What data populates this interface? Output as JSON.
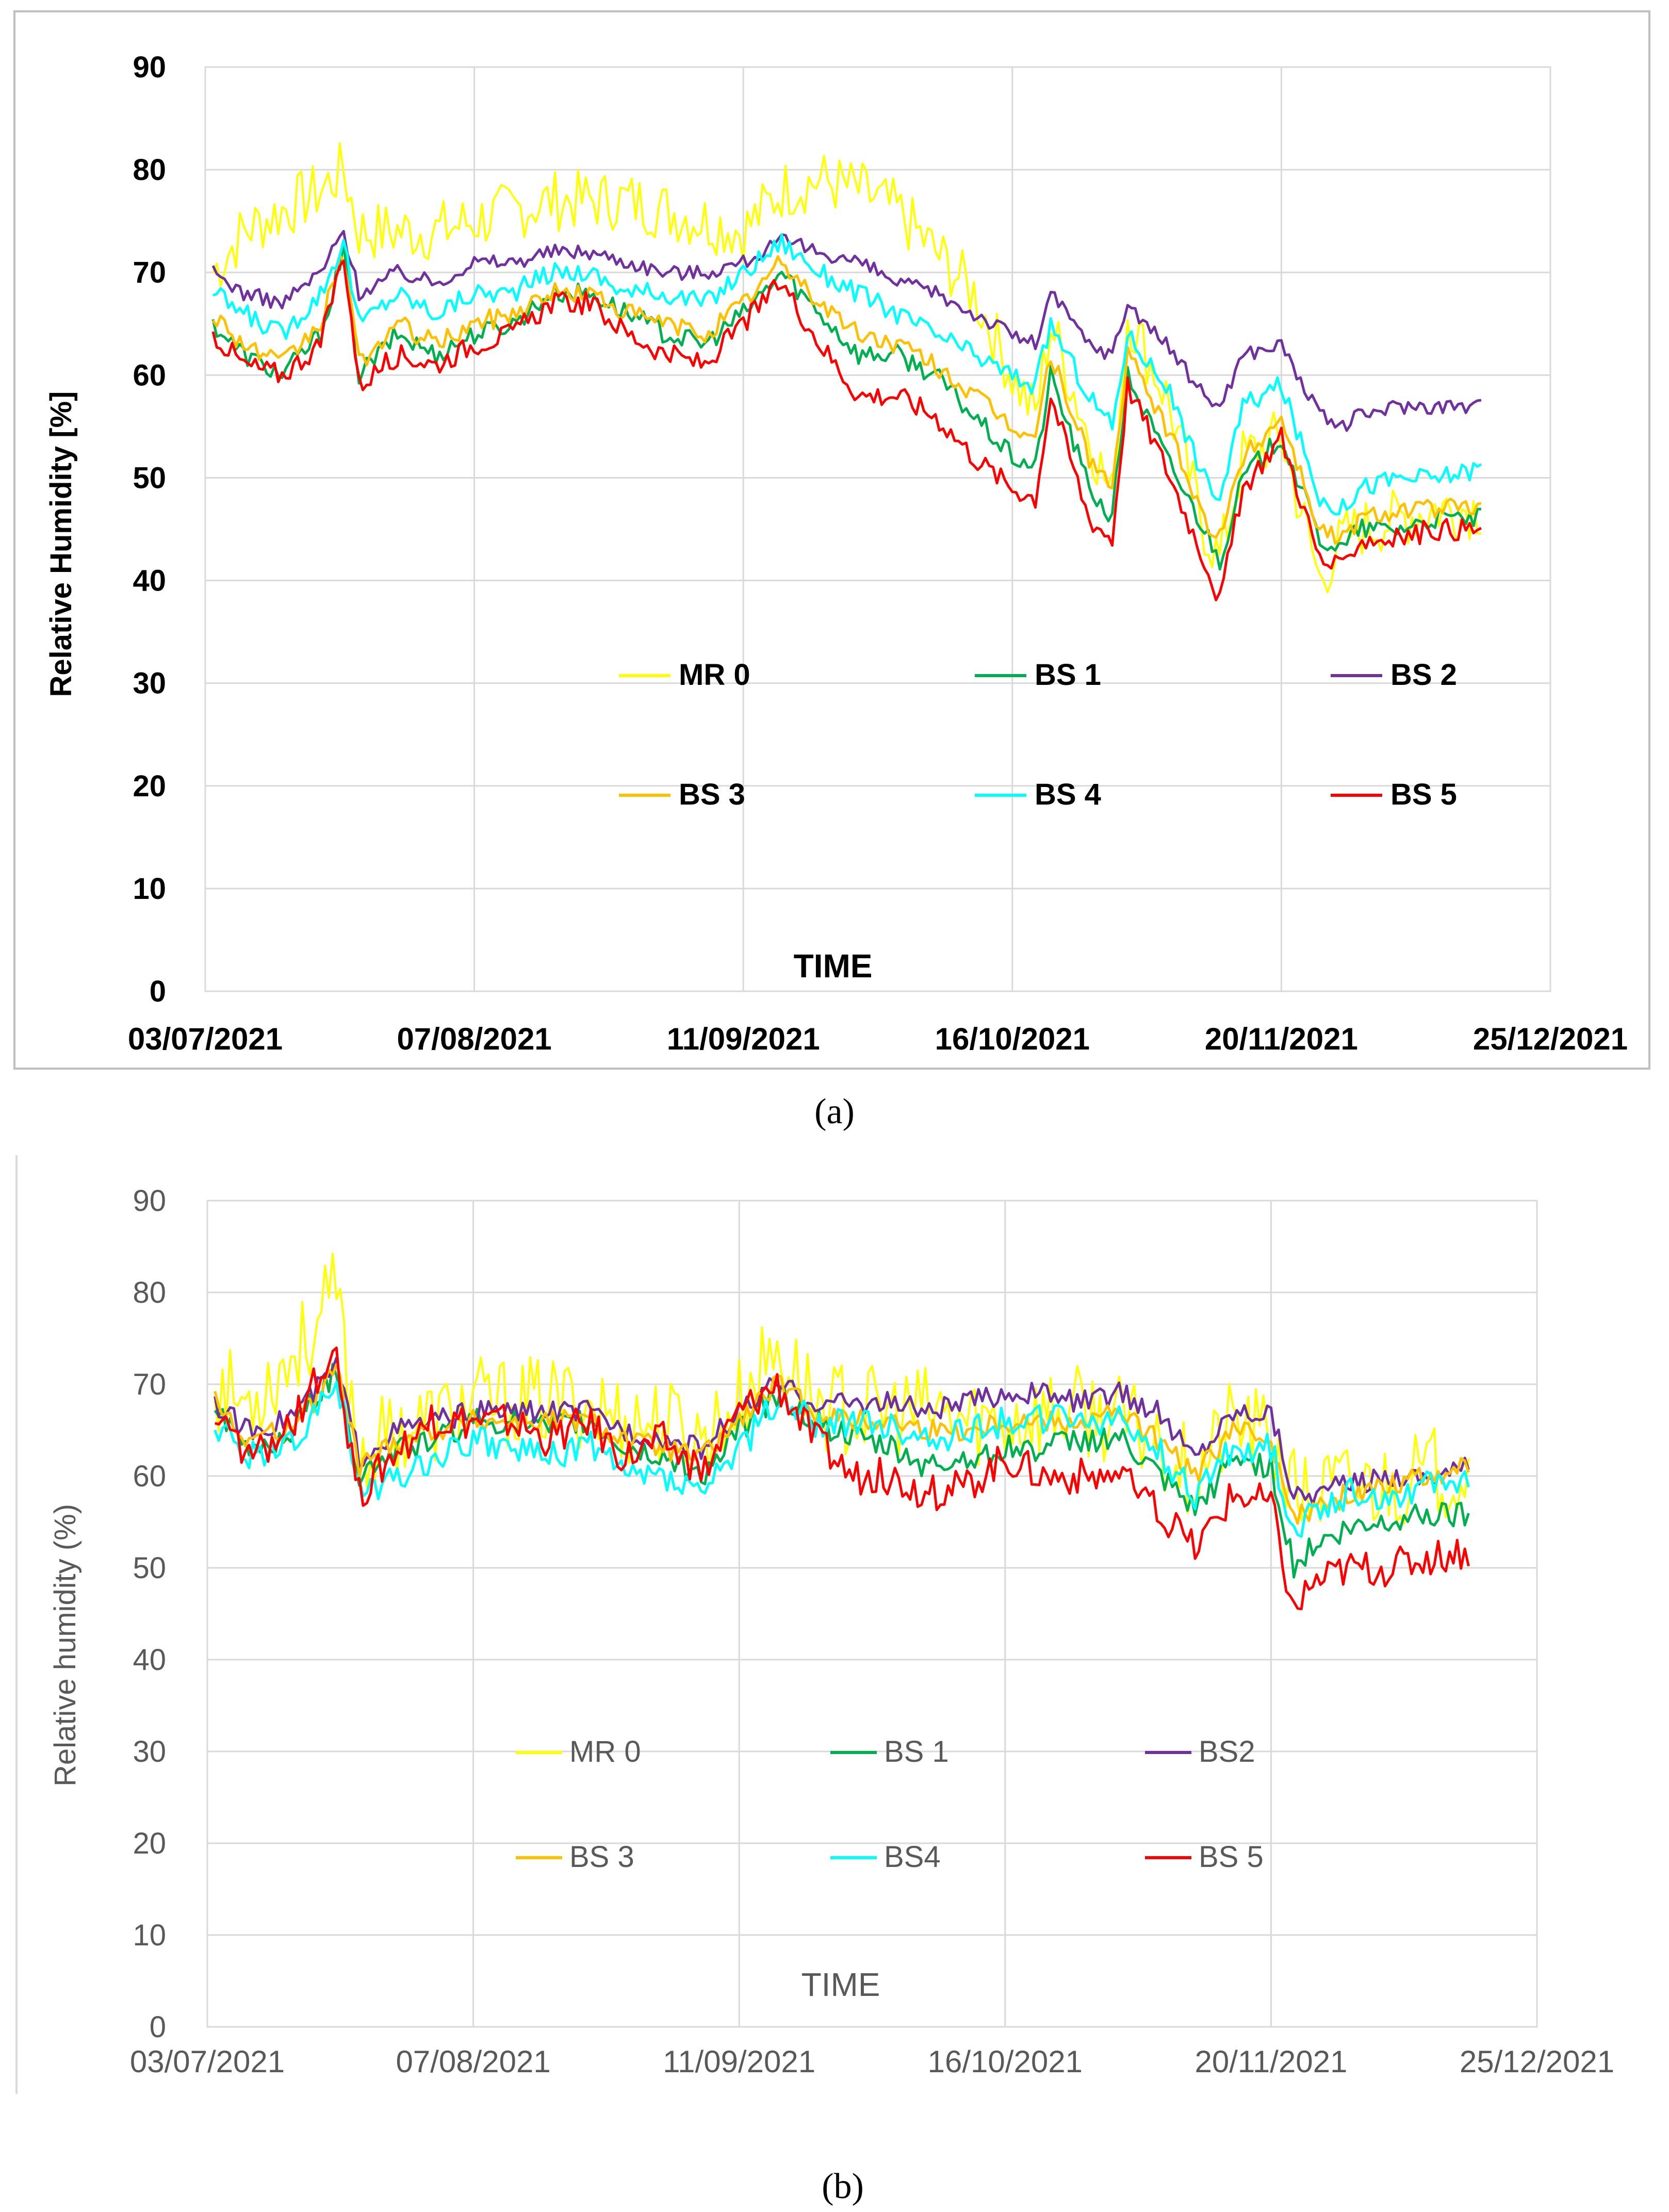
{
  "figure": {
    "caption_a": "(a)",
    "caption_b": "(b)"
  },
  "colors": {
    "MR0": "#FFFF00",
    "BS1": "#00B050",
    "BS2": "#7030A0",
    "BS3": "#FFC000",
    "BS4": "#00FFFF",
    "BS5": "#FF0000",
    "grid": "#D9D9D9",
    "frame": "#A6A6A6"
  },
  "chart_data": [
    {
      "panel": "a",
      "type": "line",
      "title": "",
      "xlabel": "TIME",
      "ylabel": "Relative Humidity [%]",
      "ylim": [
        0,
        90
      ],
      "yticks": [
        0,
        10,
        20,
        30,
        40,
        50,
        60,
        70,
        80,
        90
      ],
      "xlim_days": [
        0,
        175
      ],
      "xtick_labels": [
        "03/07/2021",
        "07/08/2021",
        "11/09/2021",
        "16/10/2021",
        "20/11/2021",
        "25/12/2021"
      ],
      "xtick_days": [
        0,
        35,
        70,
        105,
        140,
        175
      ],
      "grid": true,
      "legend_rows": [
        [
          "MR 0",
          "BS 1",
          "BS 2"
        ],
        [
          "BS 3",
          "BS 4",
          "BS 5"
        ]
      ],
      "x_days": [
        1,
        5,
        10,
        15,
        18,
        20,
        25,
        30,
        35,
        40,
        45,
        50,
        55,
        60,
        65,
        70,
        75,
        80,
        85,
        90,
        95,
        100,
        105,
        108,
        110,
        115,
        118,
        120,
        125,
        130,
        132,
        135,
        140,
        145,
        148,
        150,
        155,
        160,
        166
      ],
      "series": [
        {
          "name": "MR 0",
          "color_key": "MR0",
          "noise": 6,
          "values": [
            70,
            74,
            76,
            78,
            80,
            74,
            74,
            74,
            75,
            76,
            77,
            77,
            77,
            76,
            75,
            74,
            78,
            79,
            78,
            76,
            72,
            68,
            60,
            56,
            65,
            54,
            48,
            66,
            58,
            45,
            42,
            52,
            54,
            40,
            44,
            45,
            46,
            47,
            47
          ]
        },
        {
          "name": "BS 1",
          "color_key": "BS1",
          "noise": 2,
          "values": [
            65,
            62,
            60,
            64,
            72,
            60,
            64,
            62,
            64,
            65,
            68,
            68,
            66,
            64,
            63,
            66,
            70,
            66,
            62,
            62,
            60,
            56,
            52,
            51,
            60,
            49,
            46,
            60,
            52,
            45,
            42,
            50,
            54,
            44,
            43,
            45,
            45,
            46,
            46
          ]
        },
        {
          "name": "BS 2",
          "color_key": "BS2",
          "noise": 1.5,
          "values": [
            70,
            68,
            67,
            70,
            74,
            68,
            70,
            69,
            71,
            71,
            72,
            72,
            71,
            70,
            70,
            71,
            73,
            72,
            71,
            69,
            68,
            66,
            64,
            63,
            68,
            63,
            62,
            67,
            63,
            58,
            57,
            62,
            63,
            56,
            55,
            56,
            57,
            57,
            57
          ]
        },
        {
          "name": "BS 3",
          "color_key": "BS3",
          "noise": 2,
          "values": [
            66,
            63,
            61,
            65,
            72,
            61,
            65,
            63,
            65,
            66,
            68,
            68,
            66,
            65,
            64,
            67,
            71,
            67,
            64,
            63,
            61,
            58,
            55,
            54,
            62,
            52,
            49,
            62,
            55,
            46,
            44,
            52,
            56,
            45,
            44,
            46,
            47,
            47,
            47
          ]
        },
        {
          "name": "BS 4",
          "color_key": "BS4",
          "noise": 2,
          "values": [
            68,
            66,
            64,
            68,
            73,
            65,
            68,
            66,
            68,
            68,
            70,
            70,
            68,
            68,
            67,
            70,
            73,
            70,
            68,
            66,
            64,
            62,
            60,
            59,
            65,
            58,
            55,
            64,
            59,
            50,
            48,
            57,
            59,
            48,
            47,
            49,
            50,
            50,
            51
          ]
        },
        {
          "name": "BS 5",
          "color_key": "BS5",
          "noise": 2.2,
          "values": [
            64,
            61,
            60,
            63,
            72,
            59,
            62,
            61,
            63,
            64,
            67,
            67,
            64,
            62,
            61,
            65,
            69,
            63,
            58,
            58,
            56,
            52,
            49,
            48,
            58,
            46,
            44,
            59,
            51,
            42,
            38,
            49,
            54,
            42,
            41,
            44,
            44,
            45,
            45
          ]
        }
      ]
    },
    {
      "panel": "b",
      "type": "line",
      "title": "",
      "xlabel": "TIME",
      "ylabel": "Relative humidity (%)",
      "ylim": [
        0,
        90
      ],
      "yticks": [
        0,
        10,
        20,
        30,
        40,
        50,
        60,
        70,
        80,
        90
      ],
      "xlim_days": [
        0,
        175
      ],
      "xtick_labels": [
        "03/07/2021",
        "07/08/2021",
        "11/09/2021",
        "16/10/2021",
        "20/11/2021",
        "25/12/2021"
      ],
      "xtick_days": [
        0,
        35,
        70,
        105,
        140,
        175
      ],
      "grid": true,
      "legend_rows": [
        [
          "MR 0",
          "BS 1",
          "BS2"
        ],
        [
          "BS 3",
          "BS4",
          "BS 5"
        ]
      ],
      "x_days": [
        1,
        5,
        10,
        14,
        17,
        20,
        25,
        30,
        35,
        40,
        45,
        50,
        55,
        60,
        65,
        70,
        75,
        80,
        85,
        90,
        95,
        100,
        105,
        110,
        115,
        120,
        125,
        130,
        135,
        140,
        143,
        145,
        150,
        155,
        160,
        166
      ],
      "series": [
        {
          "name": "MR 0",
          "color_key": "MR0",
          "noise": 10,
          "values": [
            70,
            68,
            72,
            76,
            80,
            62,
            65,
            66,
            68,
            68,
            68,
            68,
            66,
            66,
            64,
            68,
            74,
            68,
            67,
            67,
            67,
            66,
            66,
            67,
            67,
            66,
            64,
            60,
            66,
            64,
            58,
            58,
            59,
            59,
            60,
            61
          ]
        },
        {
          "name": "BS 1",
          "color_key": "BS1",
          "noise": 3,
          "values": [
            67,
            63,
            64,
            68,
            72,
            60,
            63,
            64,
            66,
            66,
            65,
            66,
            63,
            62,
            60,
            65,
            69,
            66,
            64,
            63,
            61,
            62,
            63,
            63,
            64,
            64,
            60,
            56,
            62,
            61,
            50,
            52,
            54,
            55,
            56,
            56
          ]
        },
        {
          "name": "BS2",
          "color_key": "BS2",
          "noise": 2.5,
          "values": [
            68,
            65,
            66,
            69,
            72,
            62,
            65,
            66,
            67,
            67,
            67,
            67,
            65,
            64,
            63,
            67,
            70,
            68,
            68,
            68,
            67,
            68,
            69,
            69,
            68,
            69,
            67,
            62,
            67,
            67,
            58,
            58,
            59,
            60,
            60,
            61
          ]
        },
        {
          "name": "BS 3",
          "color_key": "BS3",
          "noise": 2.5,
          "values": [
            68,
            64,
            65,
            68,
            72,
            61,
            64,
            65,
            66,
            66,
            66,
            66,
            64,
            63,
            62,
            66,
            70,
            67,
            66,
            66,
            65,
            65,
            66,
            66,
            66,
            67,
            64,
            60,
            65,
            64,
            56,
            56,
            58,
            59,
            60,
            61
          ]
        },
        {
          "name": "BS4",
          "color_key": "BS4",
          "noise": 3.5,
          "values": [
            66,
            62,
            63,
            66,
            71,
            58,
            60,
            62,
            64,
            63,
            62,
            64,
            60,
            60,
            58,
            63,
            68,
            66,
            66,
            65,
            64,
            65,
            66,
            66,
            66,
            66,
            63,
            58,
            63,
            63,
            54,
            56,
            58,
            58,
            59,
            60
          ]
        },
        {
          "name": "BS 5",
          "color_key": "BS5",
          "noise": 4,
          "values": [
            66,
            62,
            64,
            70,
            72,
            58,
            63,
            66,
            66,
            66,
            64,
            66,
            62,
            64,
            60,
            67,
            70,
            64,
            60,
            60,
            58,
            59,
            62,
            60,
            60,
            60,
            56,
            52,
            58,
            57,
            45,
            48,
            50,
            50,
            51,
            52
          ]
        }
      ]
    }
  ]
}
